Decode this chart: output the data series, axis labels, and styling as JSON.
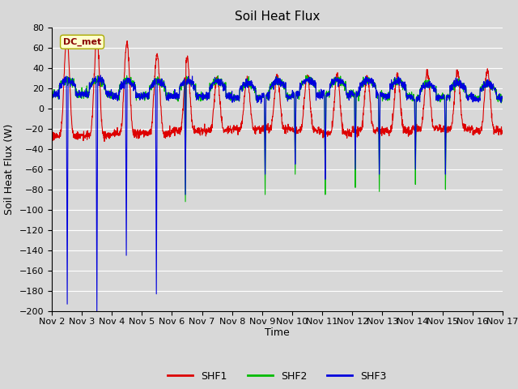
{
  "title": "Soil Heat Flux",
  "ylabel": "Soil Heat Flux (W)",
  "xlabel": "Time",
  "annotation": "DC_met",
  "legend_labels": [
    "SHF1",
    "SHF2",
    "SHF3"
  ],
  "legend_colors": [
    "#dd0000",
    "#00bb00",
    "#0000dd"
  ],
  "ylim": [
    -200,
    80
  ],
  "yticks": [
    -200,
    -180,
    -160,
    -140,
    -120,
    -100,
    -80,
    -60,
    -40,
    -20,
    0,
    20,
    40,
    60,
    80
  ],
  "bg_color": "#d8d8d8",
  "plot_bg_color": "#d8d8d8",
  "grid_color": "white",
  "title_fontsize": 11,
  "axis_fontsize": 9,
  "tick_fontsize": 8,
  "n_days": 15,
  "points_per_day": 144,
  "start_day": 2,
  "annotation_box_color": "#ffffcc",
  "annotation_text_color": "#880000",
  "annotation_edge_color": "#aaaa00"
}
